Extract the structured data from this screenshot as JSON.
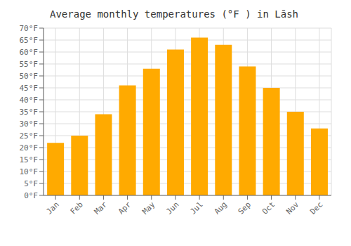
{
  "chart_data": {
    "type": "bar",
    "title": "Average monthly temperatures (°F ) in Lāsh",
    "categories": [
      "Jan",
      "Feb",
      "Mar",
      "Apr",
      "May",
      "Jun",
      "Jul",
      "Aug",
      "Sep",
      "Oct",
      "Nov",
      "Dec"
    ],
    "values": [
      22,
      25,
      34,
      46,
      53,
      61,
      66,
      63,
      54,
      45,
      35,
      28
    ],
    "color": "#FFAA00",
    "ylim": [
      0,
      70
    ],
    "yticks": [
      {
        "value": 0,
        "label": "0°F"
      },
      {
        "value": 5,
        "label": "5°F"
      },
      {
        "value": 10,
        "label": "10°F"
      },
      {
        "value": 15,
        "label": "15°F"
      },
      {
        "value": 20,
        "label": "20°F"
      },
      {
        "value": 25,
        "label": "25°F"
      },
      {
        "value": 30,
        "label": "30°F"
      },
      {
        "value": 35,
        "label": "35°F"
      },
      {
        "value": 40,
        "label": "40°F"
      },
      {
        "value": 45,
        "label": "45°F"
      },
      {
        "value": 50,
        "label": "50°F"
      },
      {
        "value": 55,
        "label": "55°F"
      },
      {
        "value": 60,
        "label": "60°F"
      },
      {
        "value": 65,
        "label": "65°F"
      },
      {
        "value": 70,
        "label": "70°F"
      }
    ],
    "grid": true
  }
}
